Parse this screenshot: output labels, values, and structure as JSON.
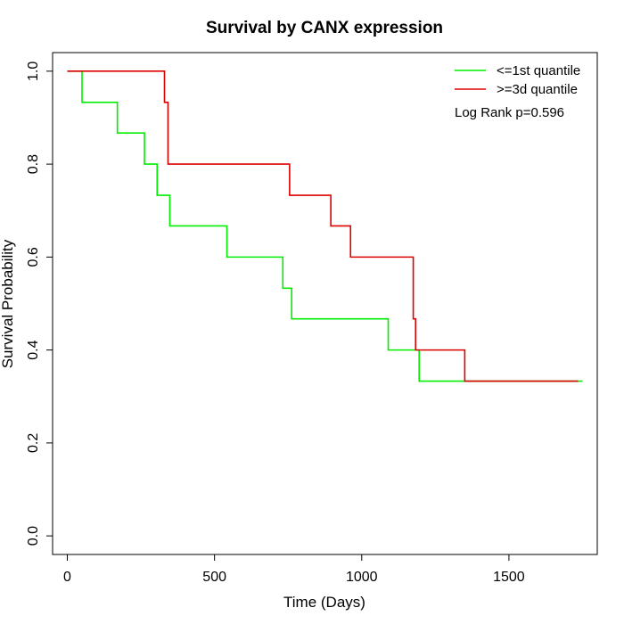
{
  "chart_data": {
    "type": "line",
    "title": "Survival by CANX expression",
    "xlabel": "Time (Days)",
    "ylabel": "Survival Probability",
    "xlim": [
      -50,
      1800
    ],
    "ylim": [
      -0.04,
      1.04
    ],
    "xticks": [
      0,
      500,
      1000,
      1500
    ],
    "yticks": [
      0.0,
      0.2,
      0.4,
      0.6,
      0.8,
      1.0
    ],
    "xtick_labels": [
      "0",
      "500",
      "1000",
      "1500"
    ],
    "ytick_labels": [
      "0.0",
      "0.2",
      "0.4",
      "0.6",
      "0.8",
      "1.0"
    ],
    "grid": false,
    "legend_position": "top-right",
    "annotation": "Log Rank p=0.596",
    "series": [
      {
        "name": "<=1st quantile",
        "color": "#00ee00",
        "step": true,
        "x": [
          0,
          50,
          170,
          262,
          305,
          348,
          542,
          732,
          762,
          1090,
          1195,
          1750
        ],
        "y": [
          1.0,
          0.933,
          0.867,
          0.8,
          0.733,
          0.667,
          0.6,
          0.533,
          0.467,
          0.4,
          0.333,
          0.333
        ]
      },
      {
        "name": ">=3d quantile",
        "color": "#dd0000",
        "step": true,
        "x": [
          0,
          330,
          342,
          755,
          895,
          962,
          1175,
          1183,
          1350,
          1735
        ],
        "y": [
          1.0,
          0.933,
          0.8,
          0.733,
          0.667,
          0.6,
          0.467,
          0.4,
          0.333,
          0.333
        ]
      }
    ]
  }
}
